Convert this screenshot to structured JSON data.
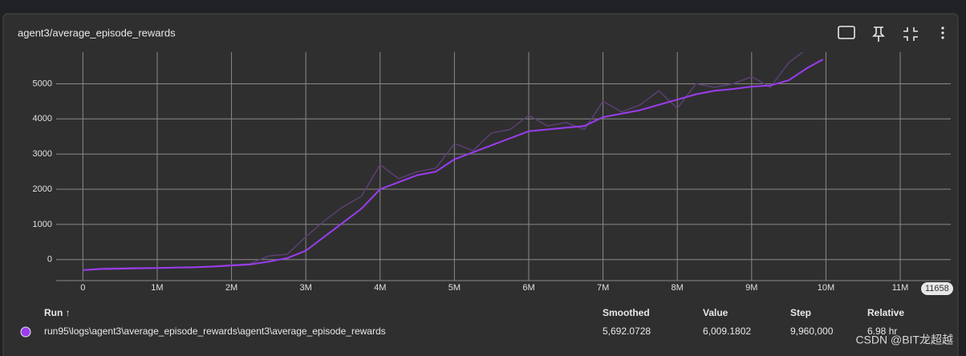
{
  "chart_data": {
    "type": "line",
    "title": "agent3/average_episode_rewards",
    "x": [
      0,
      250000,
      500000,
      750000,
      1000000,
      1250000,
      1500000,
      1750000,
      2000000,
      2250000,
      2500000,
      2750000,
      3000000,
      3250000,
      3500000,
      3750000,
      4000000,
      4250000,
      4500000,
      4750000,
      5000000,
      5250000,
      5500000,
      5750000,
      6000000,
      6250000,
      6500000,
      6750000,
      7000000,
      7250000,
      7500000,
      7750000,
      8000000,
      8250000,
      8500000,
      8750000,
      9000000,
      9250000,
      9500000,
      9750000,
      9960000
    ],
    "series": [
      {
        "name": "Smoothed",
        "color": "#9b3cf0",
        "values": [
          -300,
          -270,
          -260,
          -250,
          -240,
          -230,
          -220,
          -200,
          -170,
          -140,
          -60,
          40,
          250,
          650,
          1050,
          1450,
          2000,
          2200,
          2400,
          2500,
          2850,
          3050,
          3250,
          3450,
          3650,
          3700,
          3750,
          3800,
          4050,
          4150,
          4250,
          4400,
          4550,
          4700,
          4800,
          4850,
          4920,
          4950,
          5100,
          5450,
          5692.0728
        ]
      },
      {
        "name": "Value",
        "color": "#5b3f74",
        "values": [
          -300,
          -250,
          -240,
          -230,
          -240,
          -220,
          -210,
          -190,
          -150,
          -120,
          100,
          150,
          650,
          1100,
          1500,
          1800,
          2700,
          2300,
          2500,
          2600,
          3300,
          3100,
          3600,
          3700,
          4100,
          3800,
          3900,
          3700,
          4500,
          4200,
          4400,
          4800,
          4300,
          5000,
          4900,
          5000,
          5200,
          4900,
          5600,
          6000,
          6009.1802
        ]
      }
    ],
    "xlim": [
      -360000,
      11680000
    ],
    "ylim": [
      -600,
      5900
    ],
    "xticks": [
      0,
      {
        "value": 1000000,
        "label": "1M"
      },
      {
        "value": 2000000,
        "label": "2M"
      },
      {
        "value": 3000000,
        "label": "3M"
      },
      {
        "value": 4000000,
        "label": "4M"
      },
      {
        "value": 5000000,
        "label": "5M"
      },
      {
        "value": 6000000,
        "label": "6M"
      },
      {
        "value": 7000000,
        "label": "7M"
      },
      {
        "value": 8000000,
        "label": "8M"
      },
      {
        "value": 9000000,
        "label": "9M"
      },
      {
        "value": 10000000,
        "label": "10M"
      },
      {
        "value": 11000000,
        "label": "11M"
      }
    ],
    "yticks": [
      0,
      1000,
      2000,
      3000,
      4000,
      5000
    ],
    "grid": true,
    "axis_badge": "11658"
  },
  "table": {
    "headers": [
      "Run ↑",
      "Step",
      "Relative"
    ],
    "run": "run95\\logs\\agent3\\average_episode_rewards\\agent3\\average_episode_rewards",
    "smoothed": "5,692.0728",
    "value": "6,009.1802",
    "step": "9,960,000",
    "relative": "6.98 hr"
  },
  "watermark": "CSDN @BIT龙超越"
}
